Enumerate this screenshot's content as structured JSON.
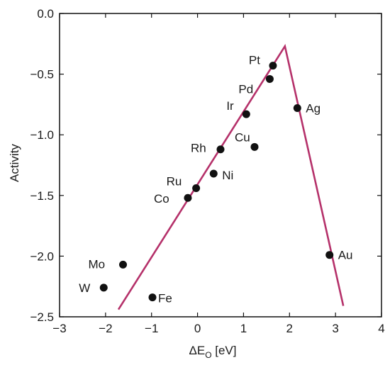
{
  "chart_data": {
    "type": "scatter",
    "title": "",
    "xlabel": {
      "prefix": "ΔE",
      "subscript": "O",
      "unit": " [eV]"
    },
    "ylabel": "Activity",
    "xlim": [
      -3,
      4
    ],
    "ylim": [
      -2.5,
      0.0
    ],
    "xticks": [
      -3,
      -2,
      -1,
      0,
      1,
      2,
      3,
      4
    ],
    "xtick_labels": [
      "−3",
      "−2",
      "−1",
      "0",
      "1",
      "2",
      "3",
      "4"
    ],
    "yticks": [
      0.0,
      -0.5,
      -1.0,
      -1.5,
      -2.0,
      -2.5
    ],
    "ytick_labels": [
      "0.0",
      "−0.5",
      "−1.0",
      "−1.5",
      "−2.0",
      "−2.5"
    ],
    "grid": false,
    "points": [
      {
        "label": "Pt",
        "x": 1.64,
        "y": -0.43
      },
      {
        "label": "Pd",
        "x": 1.57,
        "y": -0.54
      },
      {
        "label": "Ir",
        "x": 1.06,
        "y": -0.83
      },
      {
        "label": "Ag",
        "x": 2.17,
        "y": -0.78
      },
      {
        "label": "Cu",
        "x": 1.24,
        "y": -1.1
      },
      {
        "label": "Rh",
        "x": 0.5,
        "y": -1.12
      },
      {
        "label": "Ni",
        "x": 0.35,
        "y": -1.32
      },
      {
        "label": "Ru",
        "x": -0.03,
        "y": -1.44
      },
      {
        "label": "Co",
        "x": -0.21,
        "y": -1.52
      },
      {
        "label": "Mo",
        "x": -1.62,
        "y": -2.07
      },
      {
        "label": "W",
        "x": -2.04,
        "y": -2.26
      },
      {
        "label": "Fe",
        "x": -0.98,
        "y": -2.34
      },
      {
        "label": "Au",
        "x": 2.87,
        "y": -1.99
      }
    ],
    "volcano_line": {
      "color": "#b5316a",
      "x": [
        -1.72,
        1.9,
        3.17
      ],
      "y": [
        -2.44,
        -0.27,
        -2.41
      ]
    },
    "marker_color": "#111111"
  }
}
